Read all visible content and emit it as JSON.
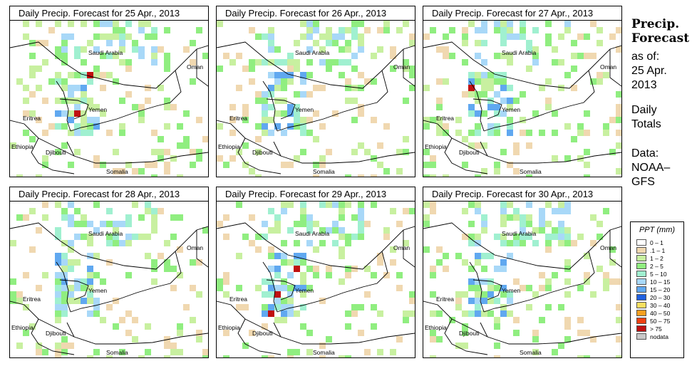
{
  "panels": [
    {
      "title": "Daily Precip. Forecast for  25 Apr., 2013"
    },
    {
      "title": "Daily Precip. Forecast for  26 Apr., 2013"
    },
    {
      "title": "Daily Precip. Forecast for  27 Apr., 2013"
    },
    {
      "title": "Daily Precip. Forecast for  28 Apr., 2013"
    },
    {
      "title": "Daily Precip. Forecast for  29 Apr., 2013"
    },
    {
      "title": "Daily Precip. Forecast for  30 Apr., 2013"
    }
  ],
  "map_labels": {
    "saudi": "Saudi Arabia",
    "oman": "Oman",
    "yemen": "Yemen",
    "eritrea": "Eritrea",
    "ethiopia": "Ethiopia",
    "djibouti": "Djibouti",
    "somalia": "Somalia"
  },
  "sidebar": {
    "title_line1": "Precip.",
    "title_line2": "Forecast",
    "asof_label": "as of:",
    "asof_date_line1": "25 Apr.",
    "asof_date_line2": "2013",
    "totals_line1": "Daily",
    "totals_line2": "Totals",
    "source_line1": "Data:",
    "source_line2": "NOAA–",
    "source_line3": "GFS"
  },
  "legend": {
    "title": "PPT (mm)",
    "items": [
      {
        "label": "0 – 1",
        "color": "#ffffff"
      },
      {
        "label": ".1 – 1",
        "color": "#f0d8b0"
      },
      {
        "label": "1 – 2",
        "color": "#c8f0a0"
      },
      {
        "label": "2 – 5",
        "color": "#90ee80"
      },
      {
        "label": "5 – 10",
        "color": "#a0f0d0"
      },
      {
        "label": "10 – 15",
        "color": "#a8d8f8"
      },
      {
        "label": "15 – 20",
        "color": "#60a8f0"
      },
      {
        "label": "20 – 30",
        "color": "#2060e0"
      },
      {
        "label": "30 – 40",
        "color": "#f8e060"
      },
      {
        "label": "40 – 50",
        "color": "#f8a020"
      },
      {
        "label": "50 – 75",
        "color": "#f04010"
      },
      {
        "label": "> 75",
        "color": "#c01010"
      },
      {
        "label": "nodata",
        "color": "#c8c8c8"
      }
    ]
  }
}
